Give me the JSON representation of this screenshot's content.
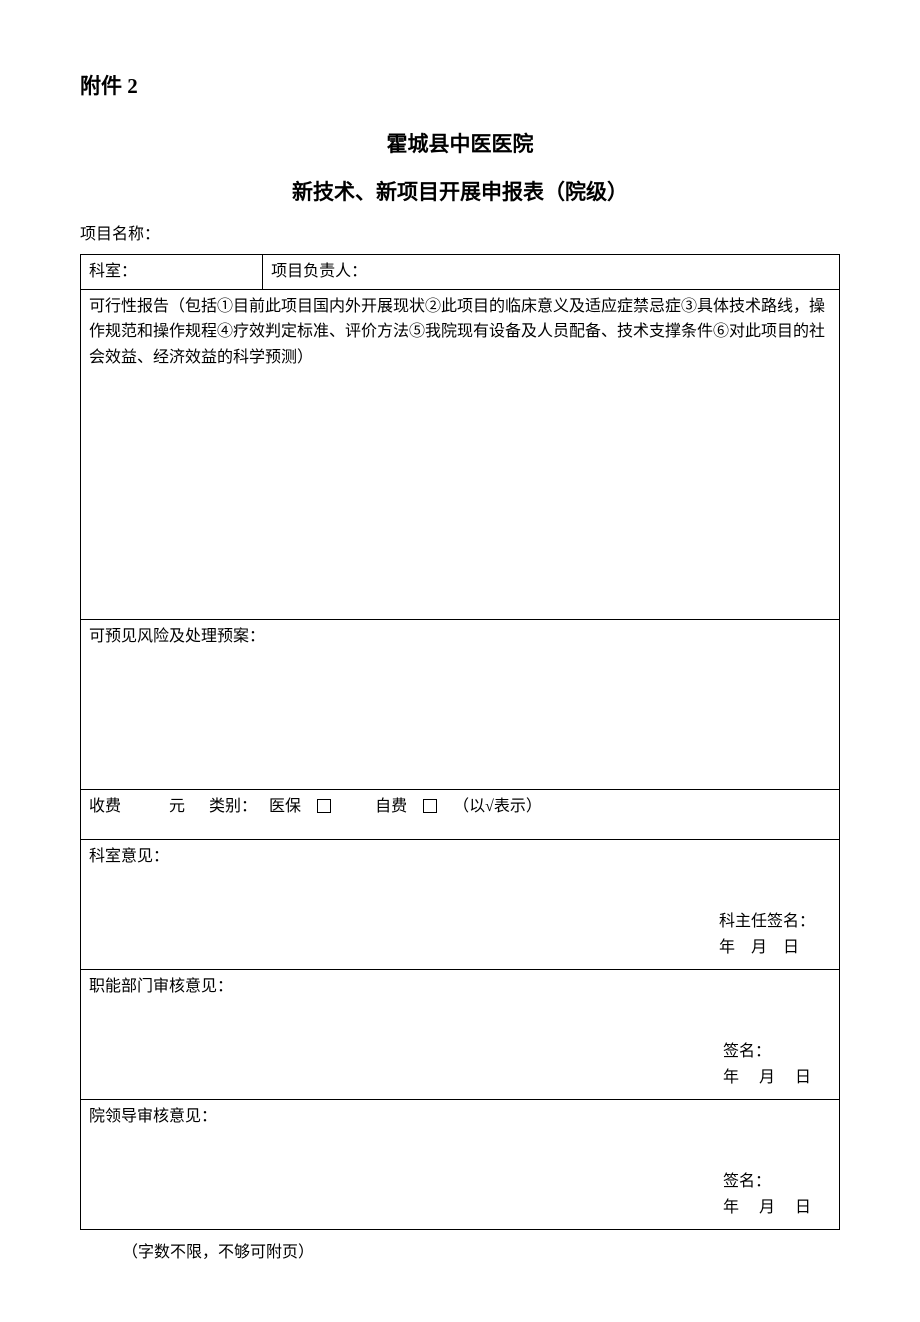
{
  "colors": {
    "background": "#ffffff",
    "text": "#000000",
    "border": "#000000"
  },
  "typography": {
    "base_font_size": 16,
    "title_font_size": 21,
    "font_family": "SimSun/宋体"
  },
  "header": {
    "attachment_label": "附件 2",
    "hospital_name": "霍城县中医医院",
    "form_title": "新技术、新项目开展申报表（院级）"
  },
  "labels": {
    "project_name": "项目名称：",
    "department": "科室：",
    "project_leader": "项目负责人：",
    "feasibility_report": "可行性报告（包括①目前此项目国内外开展现状②此项目的临床意义及适应症禁忌症③具体技术路线，操作规范和操作规程④疗效判定标准、评价方法⑤我院现有设备及人员配备、技术支撑条件⑥对此项目的社会效益、经济效益的科学预测）",
    "foreseeable_risk": "可预见风险及处理预案：",
    "fee_label": "收费",
    "yuan": "元",
    "category": "类别：",
    "medical_insurance": "医保",
    "self_pay": "自费",
    "check_hint": "（以√表示）",
    "dept_opinion": "科室意见：",
    "dept_head_sign": "科主任签名：",
    "functional_dept_opinion": "职能部门审核意见：",
    "sign_label": "签名：",
    "hospital_leader_opinion": "院领导审核意见：",
    "date_year": "年",
    "date_month": "月",
    "date_day": "日",
    "footer_note": "（字数不限，不够可附页）"
  }
}
